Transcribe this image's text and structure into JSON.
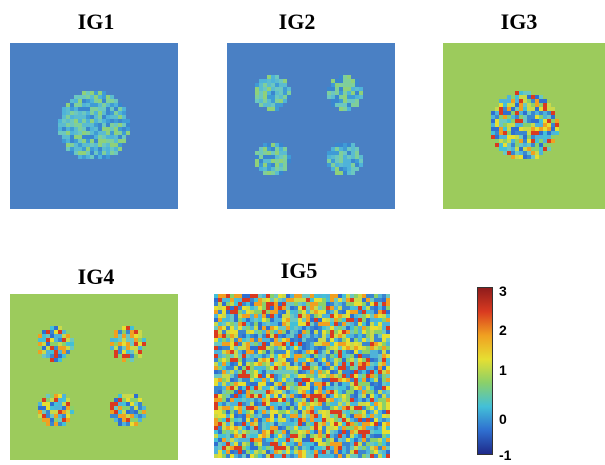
{
  "panels": [
    {
      "id": "IG1",
      "title": "IG1",
      "background": "#4a80c4",
      "blob_layout": "single",
      "noise_level": "low"
    },
    {
      "id": "IG2",
      "title": "IG2",
      "background": "#4a80c4",
      "blob_layout": "quad",
      "noise_level": "low"
    },
    {
      "id": "IG3",
      "title": "IG3",
      "background": "#9ccb5c",
      "blob_layout": "single",
      "noise_level": "high"
    },
    {
      "id": "IG4",
      "title": "IG4",
      "background": "#9ccb5c",
      "blob_layout": "quad",
      "noise_level": "high"
    },
    {
      "id": "IG5",
      "title": "IG5",
      "background": "#9ccb5c",
      "blob_layout": "full",
      "noise_level": "high"
    }
  ],
  "colorbar": {
    "ticks": [
      "3",
      "2",
      "1",
      "0",
      "-1"
    ],
    "min": -1,
    "max": 3,
    "colors": [
      "#1f2a8a",
      "#2f6fd0",
      "#43c0d8",
      "#8ad06a",
      "#e6df32",
      "#f0a021",
      "#d93a20",
      "#8f1c1c"
    ]
  }
}
